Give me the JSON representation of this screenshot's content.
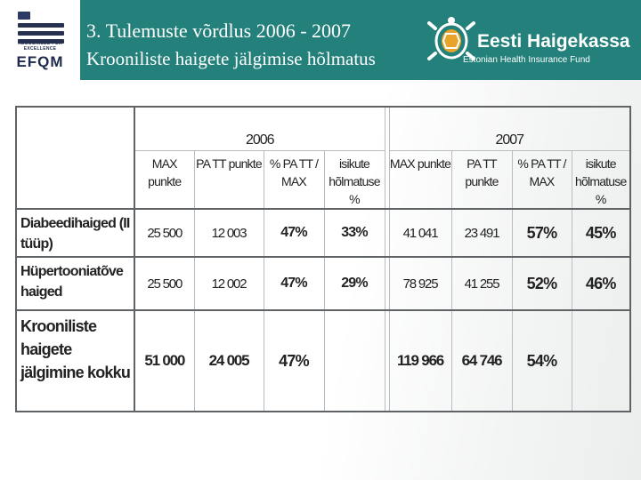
{
  "header": {
    "efqm_recognised": "RECOGNISED FOR EXCELLENCE",
    "efqm_logo": "EFQM",
    "title_line1": "3. Tulemuste võrdlus 2006  - 2007",
    "title_line2": "Krooniliste haigete jälgimise hõlmatus",
    "brand_name": "Eesti Haigekassa",
    "brand_sub": "Estonian Health Insurance Fund"
  },
  "colors": {
    "band": "#23807b",
    "efqm_navy": "#26304f",
    "efqm_orange": "#e8a32b"
  },
  "table": {
    "year_2006": "2006",
    "year_2007": "2007",
    "col_max": "MAX punkte",
    "col_patt": "PA TT punkte",
    "col_pct": "% PA TT / MAX",
    "col_isik": "isikute hõlmatuse %",
    "rows": [
      {
        "label": "Diabeedihaiged (II tüüp)",
        "max_2006": "25 500",
        "patt_2006": "12 003",
        "pct_2006": "47%",
        "isik_2006": "33%",
        "max_2007": "41 041",
        "patt_2007": "23 491",
        "pct_2007": "57%",
        "isik_2007": "45%"
      },
      {
        "label": "Hüpertooniatõve haiged",
        "max_2006": "25 500",
        "patt_2006": "12 002",
        "pct_2006": "47%",
        "isik_2006": "29%",
        "max_2007": "78 925",
        "patt_2007": "41 255",
        "pct_2007": "52%",
        "isik_2007": "46%"
      },
      {
        "label": "Krooniliste haigete jälgimine kokku",
        "max_2006": "51 000",
        "patt_2006": "24 005",
        "pct_2006": "47%",
        "isik_2006": "",
        "max_2007": "119 966",
        "patt_2007": "64 746",
        "pct_2007": "54%",
        "isik_2007": ""
      }
    ]
  }
}
